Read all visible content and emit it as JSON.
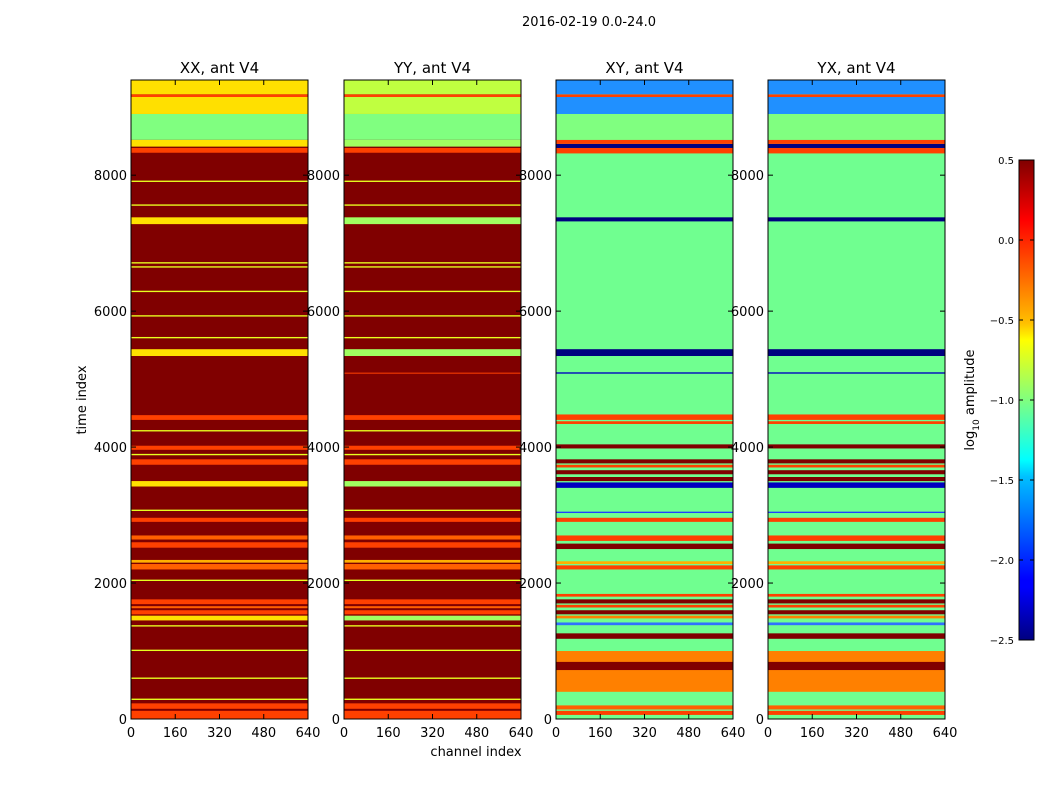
{
  "figure": {
    "suptitle": "2016-02-19 0.0-24.0"
  },
  "chart_data": {
    "type": "heatmap",
    "xlabel": "channel index",
    "ylabel": "time index",
    "xticks": [
      0,
      160,
      320,
      480,
      640
    ],
    "yticks": [
      0,
      2000,
      4000,
      6000,
      8000
    ],
    "xlim": [
      0,
      640
    ],
    "ylim": [
      0,
      9400
    ],
    "colorbar": {
      "label_main": "log",
      "label_sub": "10",
      "label_tail": " amplitude",
      "min": -2.5,
      "max": 0.5,
      "ticks": [
        0.5,
        0.0,
        -0.5,
        -1.0,
        -1.5,
        -2.0,
        -2.5
      ],
      "tick_labels": [
        "0.5",
        "0.0",
        "−0.5",
        "−1.0",
        "−1.5",
        "−2.0",
        "−2.5"
      ],
      "colormap": "jet"
    },
    "panels": [
      {
        "title": "XX, ant V4",
        "background": "#800000",
        "bands": [
          {
            "y0": 0,
            "y1": 120,
            "color": "#ff4000"
          },
          {
            "y0": 150,
            "y1": 230,
            "color": "#ff4000"
          },
          {
            "y0": 280,
            "y1": 300,
            "color": "#e8ff20"
          },
          {
            "y0": 590,
            "y1": 610,
            "color": "#e8ff20"
          },
          {
            "y0": 1000,
            "y1": 1020,
            "color": "#e8ff20"
          },
          {
            "y0": 1360,
            "y1": 1380,
            "color": "#e8ff20"
          },
          {
            "y0": 1450,
            "y1": 1520,
            "color": "#ffe000"
          },
          {
            "y0": 1540,
            "y1": 1600,
            "color": "#ff4000"
          },
          {
            "y0": 1630,
            "y1": 1660,
            "color": "#ff6000"
          },
          {
            "y0": 1690,
            "y1": 1760,
            "color": "#ff4000"
          },
          {
            "y0": 2030,
            "y1": 2050,
            "color": "#e8ff20"
          },
          {
            "y0": 2200,
            "y1": 2280,
            "color": "#ff6000"
          },
          {
            "y0": 2300,
            "y1": 2340,
            "color": "#ffb000"
          },
          {
            "y0": 2520,
            "y1": 2600,
            "color": "#ff4000"
          },
          {
            "y0": 2640,
            "y1": 2700,
            "color": "#ff6000"
          },
          {
            "y0": 2900,
            "y1": 2960,
            "color": "#ff4000"
          },
          {
            "y0": 3060,
            "y1": 3080,
            "color": "#e8ff20"
          },
          {
            "y0": 3420,
            "y1": 3500,
            "color": "#ffe000"
          },
          {
            "y0": 3740,
            "y1": 3820,
            "color": "#ff4000"
          },
          {
            "y0": 3880,
            "y1": 3900,
            "color": "#e8ff20"
          },
          {
            "y0": 3960,
            "y1": 4020,
            "color": "#ff4000"
          },
          {
            "y0": 4230,
            "y1": 4250,
            "color": "#e8ff20"
          },
          {
            "y0": 4400,
            "y1": 4470,
            "color": "#ff4000"
          },
          {
            "y0": 5340,
            "y1": 5440,
            "color": "#ffe000"
          },
          {
            "y0": 5600,
            "y1": 5620,
            "color": "#e8ff20"
          },
          {
            "y0": 5920,
            "y1": 5940,
            "color": "#e8ff20"
          },
          {
            "y0": 6280,
            "y1": 6300,
            "color": "#e8ff20"
          },
          {
            "y0": 6640,
            "y1": 6660,
            "color": "#e8ff20"
          },
          {
            "y0": 6700,
            "y1": 6720,
            "color": "#e8ff20"
          },
          {
            "y0": 7280,
            "y1": 7380,
            "color": "#ffe000"
          },
          {
            "y0": 7550,
            "y1": 7570,
            "color": "#e8ff20"
          },
          {
            "y0": 7900,
            "y1": 7920,
            "color": "#e8ff20"
          },
          {
            "y0": 8330,
            "y1": 8400,
            "color": "#ff4000"
          },
          {
            "y0": 8420,
            "y1": 8520,
            "color": "#ffe000"
          },
          {
            "y0": 8520,
            "y1": 8900,
            "color": "#80ff80"
          },
          {
            "y0": 8900,
            "y1": 9150,
            "color": "#ffe000"
          },
          {
            "y0": 9150,
            "y1": 9190,
            "color": "#ff4000"
          },
          {
            "y0": 9190,
            "y1": 9400,
            "color": "#ffe000"
          }
        ]
      },
      {
        "title": "YY, ant V4",
        "background": "#800000",
        "bands": [
          {
            "y0": 0,
            "y1": 120,
            "color": "#ff4000"
          },
          {
            "y0": 150,
            "y1": 230,
            "color": "#ff4000"
          },
          {
            "y0": 280,
            "y1": 300,
            "color": "#e8ff20"
          },
          {
            "y0": 590,
            "y1": 610,
            "color": "#e8ff20"
          },
          {
            "y0": 1000,
            "y1": 1020,
            "color": "#e8ff20"
          },
          {
            "y0": 1360,
            "y1": 1380,
            "color": "#e8ff20"
          },
          {
            "y0": 1450,
            "y1": 1520,
            "color": "#a0ff60"
          },
          {
            "y0": 1540,
            "y1": 1600,
            "color": "#ff4000"
          },
          {
            "y0": 1630,
            "y1": 1660,
            "color": "#ff6000"
          },
          {
            "y0": 1690,
            "y1": 1760,
            "color": "#ff4000"
          },
          {
            "y0": 2030,
            "y1": 2050,
            "color": "#e8ff20"
          },
          {
            "y0": 2200,
            "y1": 2280,
            "color": "#ff6000"
          },
          {
            "y0": 2300,
            "y1": 2340,
            "color": "#ffb000"
          },
          {
            "y0": 2520,
            "y1": 2600,
            "color": "#ff4000"
          },
          {
            "y0": 2640,
            "y1": 2700,
            "color": "#ff6000"
          },
          {
            "y0": 2900,
            "y1": 2960,
            "color": "#ff4000"
          },
          {
            "y0": 3060,
            "y1": 3080,
            "color": "#e8ff20"
          },
          {
            "y0": 3420,
            "y1": 3500,
            "color": "#a0ff60"
          },
          {
            "y0": 3740,
            "y1": 3820,
            "color": "#ff4000"
          },
          {
            "y0": 3880,
            "y1": 3900,
            "color": "#e8ff20"
          },
          {
            "y0": 3960,
            "y1": 4020,
            "color": "#ff4000"
          },
          {
            "y0": 4230,
            "y1": 4250,
            "color": "#e8ff20"
          },
          {
            "y0": 4400,
            "y1": 4470,
            "color": "#ff4000"
          },
          {
            "y0": 5080,
            "y1": 5095,
            "color": "#ff4000"
          },
          {
            "y0": 5340,
            "y1": 5440,
            "color": "#a0ff60"
          },
          {
            "y0": 5600,
            "y1": 5620,
            "color": "#e8ff20"
          },
          {
            "y0": 5920,
            "y1": 5940,
            "color": "#e8ff20"
          },
          {
            "y0": 6280,
            "y1": 6300,
            "color": "#e8ff20"
          },
          {
            "y0": 6640,
            "y1": 6660,
            "color": "#e8ff20"
          },
          {
            "y0": 6700,
            "y1": 6720,
            "color": "#e8ff20"
          },
          {
            "y0": 7280,
            "y1": 7380,
            "color": "#a0ff60"
          },
          {
            "y0": 7550,
            "y1": 7570,
            "color": "#e8ff20"
          },
          {
            "y0": 7900,
            "y1": 7920,
            "color": "#e8ff20"
          },
          {
            "y0": 8330,
            "y1": 8400,
            "color": "#ff4000"
          },
          {
            "y0": 8420,
            "y1": 8520,
            "color": "#a0ff60"
          },
          {
            "y0": 8520,
            "y1": 8900,
            "color": "#80ff80"
          },
          {
            "y0": 8900,
            "y1": 9150,
            "color": "#c0ff40"
          },
          {
            "y0": 9150,
            "y1": 9190,
            "color": "#ff4000"
          },
          {
            "y0": 9190,
            "y1": 9400,
            "color": "#c0ff40"
          }
        ]
      },
      {
        "title": "XY, ant V4",
        "background": "#70ff90",
        "bands": [
          {
            "y0": 60,
            "y1": 120,
            "color": "#ff4000"
          },
          {
            "y0": 140,
            "y1": 200,
            "color": "#ff6000"
          },
          {
            "y0": 400,
            "y1": 1000,
            "color": "#ff8000"
          },
          {
            "y0": 720,
            "y1": 840,
            "color": "#800000"
          },
          {
            "y0": 1180,
            "y1": 1260,
            "color": "#800000"
          },
          {
            "y0": 1380,
            "y1": 1420,
            "color": "#3070ff"
          },
          {
            "y0": 1480,
            "y1": 1520,
            "color": "#ff8000"
          },
          {
            "y0": 1540,
            "y1": 1600,
            "color": "#800000"
          },
          {
            "y0": 1640,
            "y1": 1680,
            "color": "#ff4000"
          },
          {
            "y0": 1700,
            "y1": 1760,
            "color": "#800000"
          },
          {
            "y0": 1800,
            "y1": 1840,
            "color": "#ff4000"
          },
          {
            "y0": 2200,
            "y1": 2260,
            "color": "#ff4000"
          },
          {
            "y0": 2280,
            "y1": 2320,
            "color": "#ffb000"
          },
          {
            "y0": 2500,
            "y1": 2580,
            "color": "#800000"
          },
          {
            "y0": 2620,
            "y1": 2700,
            "color": "#ff4000"
          },
          {
            "y0": 2900,
            "y1": 2960,
            "color": "#ff4000"
          },
          {
            "y0": 3030,
            "y1": 3050,
            "color": "#2040ff"
          },
          {
            "y0": 3400,
            "y1": 3480,
            "color": "#0000c0"
          },
          {
            "y0": 3500,
            "y1": 3560,
            "color": "#800000"
          },
          {
            "y0": 3600,
            "y1": 3660,
            "color": "#800000"
          },
          {
            "y0": 3700,
            "y1": 3740,
            "color": "#ff4000"
          },
          {
            "y0": 3760,
            "y1": 3820,
            "color": "#800000"
          },
          {
            "y0": 3980,
            "y1": 4040,
            "color": "#800000"
          },
          {
            "y0": 4340,
            "y1": 4380,
            "color": "#ff4000"
          },
          {
            "y0": 4400,
            "y1": 4480,
            "color": "#ff4000"
          },
          {
            "y0": 5080,
            "y1": 5100,
            "color": "#0000c0"
          },
          {
            "y0": 5340,
            "y1": 5440,
            "color": "#000080"
          },
          {
            "y0": 7320,
            "y1": 7380,
            "color": "#000080"
          },
          {
            "y0": 8320,
            "y1": 8400,
            "color": "#ff4000"
          },
          {
            "y0": 8400,
            "y1": 8460,
            "color": "#000080"
          },
          {
            "y0": 8460,
            "y1": 8520,
            "color": "#ff4000"
          },
          {
            "y0": 8520,
            "y1": 8900,
            "color": "#80ff80"
          },
          {
            "y0": 8900,
            "y1": 9150,
            "color": "#2090ff"
          },
          {
            "y0": 9150,
            "y1": 9190,
            "color": "#ff4000"
          },
          {
            "y0": 9190,
            "y1": 9400,
            "color": "#2090ff"
          }
        ]
      },
      {
        "title": "YX, ant V4",
        "background": "#70ff90",
        "bands": [
          {
            "y0": 60,
            "y1": 120,
            "color": "#ff4000"
          },
          {
            "y0": 140,
            "y1": 200,
            "color": "#ff6000"
          },
          {
            "y0": 400,
            "y1": 1000,
            "color": "#ff8000"
          },
          {
            "y0": 720,
            "y1": 840,
            "color": "#800000"
          },
          {
            "y0": 1180,
            "y1": 1260,
            "color": "#800000"
          },
          {
            "y0": 1380,
            "y1": 1420,
            "color": "#3070ff"
          },
          {
            "y0": 1480,
            "y1": 1520,
            "color": "#ff8000"
          },
          {
            "y0": 1540,
            "y1": 1600,
            "color": "#800000"
          },
          {
            "y0": 1640,
            "y1": 1680,
            "color": "#ff4000"
          },
          {
            "y0": 1700,
            "y1": 1760,
            "color": "#800000"
          },
          {
            "y0": 1800,
            "y1": 1840,
            "color": "#ff4000"
          },
          {
            "y0": 2200,
            "y1": 2260,
            "color": "#ff4000"
          },
          {
            "y0": 2280,
            "y1": 2320,
            "color": "#ffb000"
          },
          {
            "y0": 2500,
            "y1": 2580,
            "color": "#800000"
          },
          {
            "y0": 2620,
            "y1": 2700,
            "color": "#ff4000"
          },
          {
            "y0": 2900,
            "y1": 2960,
            "color": "#ff4000"
          },
          {
            "y0": 3030,
            "y1": 3050,
            "color": "#2040ff"
          },
          {
            "y0": 3400,
            "y1": 3480,
            "color": "#0000c0"
          },
          {
            "y0": 3500,
            "y1": 3560,
            "color": "#800000"
          },
          {
            "y0": 3600,
            "y1": 3660,
            "color": "#800000"
          },
          {
            "y0": 3700,
            "y1": 3740,
            "color": "#ff4000"
          },
          {
            "y0": 3760,
            "y1": 3820,
            "color": "#800000"
          },
          {
            "y0": 3980,
            "y1": 4040,
            "color": "#800000"
          },
          {
            "y0": 4340,
            "y1": 4380,
            "color": "#ff4000"
          },
          {
            "y0": 4400,
            "y1": 4480,
            "color": "#ff4000"
          },
          {
            "y0": 5080,
            "y1": 5100,
            "color": "#0000c0"
          },
          {
            "y0": 5340,
            "y1": 5440,
            "color": "#000080"
          },
          {
            "y0": 7320,
            "y1": 7380,
            "color": "#000080"
          },
          {
            "y0": 8320,
            "y1": 8400,
            "color": "#ff4000"
          },
          {
            "y0": 8400,
            "y1": 8460,
            "color": "#000080"
          },
          {
            "y0": 8460,
            "y1": 8520,
            "color": "#ff4000"
          },
          {
            "y0": 8520,
            "y1": 8900,
            "color": "#80ff80"
          },
          {
            "y0": 8900,
            "y1": 9150,
            "color": "#2090ff"
          },
          {
            "y0": 9150,
            "y1": 9190,
            "color": "#ff4000"
          },
          {
            "y0": 9190,
            "y1": 9400,
            "color": "#2090ff"
          }
        ]
      }
    ]
  }
}
